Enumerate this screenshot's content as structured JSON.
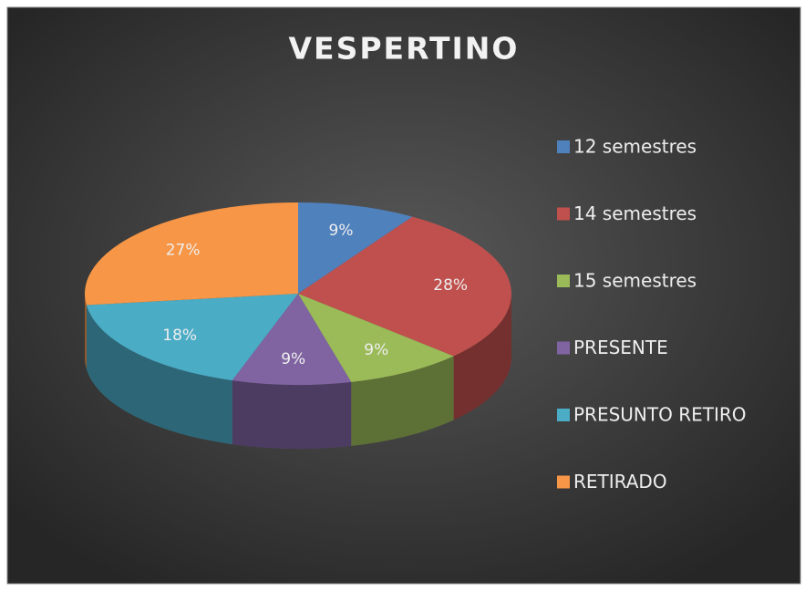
{
  "chart_data": {
    "type": "pie",
    "title": "VESPERTINO",
    "categories": [
      "12 semestres",
      "14 semestres",
      "15 semestres",
      "PRESENTE",
      "PRESUNTO RETIRO",
      "RETIRADO"
    ],
    "values": [
      9,
      28,
      9,
      9,
      18,
      27
    ],
    "value_labels": [
      "9%",
      "28%",
      "9%",
      "9%",
      "18%",
      "27%"
    ],
    "colors": [
      "#4f81bd",
      "#c0504d",
      "#9bbb59",
      "#8064a2",
      "#4bacc6",
      "#f79646"
    ],
    "legend": "right"
  }
}
